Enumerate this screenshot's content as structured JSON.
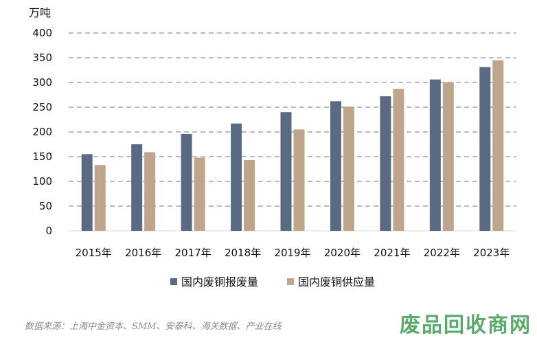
{
  "colors": {
    "series1": "#5b6a83",
    "series2": "#bfa58a",
    "grid": "#a6a6a6",
    "watermark": "#5aaa6a"
  },
  "chart_data": {
    "type": "bar",
    "unit": "万吨",
    "categories": [
      "2015年",
      "2016年",
      "2017年",
      "2018年",
      "2019年",
      "2020年",
      "2021年",
      "2022年",
      "2023年"
    ],
    "series": [
      {
        "name": "国内废铜报废量",
        "values": [
          155,
          175,
          196,
          217,
          240,
          262,
          272,
          306,
          331
        ]
      },
      {
        "name": "国内废铜供应量",
        "values": [
          133,
          159,
          148,
          143,
          205,
          251,
          287,
          300,
          345
        ]
      }
    ],
    "yticks": [
      "0",
      "50",
      "100",
      "150",
      "200",
      "250",
      "300",
      "350",
      "400"
    ],
    "ylim": [
      0,
      400
    ],
    "grid": true,
    "legend_position": "bottom"
  },
  "source_note": "数据来源：上海中金资本、SMM、安泰科、海关数据、产业在线",
  "watermark": "废品回收商网"
}
